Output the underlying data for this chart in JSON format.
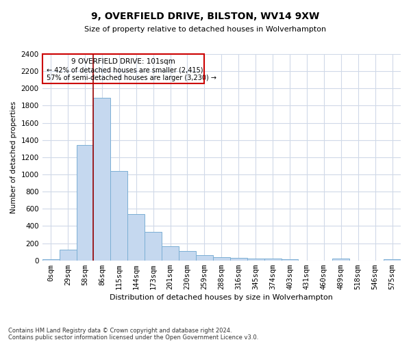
{
  "title": "9, OVERFIELD DRIVE, BILSTON, WV14 9XW",
  "subtitle": "Size of property relative to detached houses in Wolverhampton",
  "xlabel": "Distribution of detached houses by size in Wolverhampton",
  "ylabel": "Number of detached properties",
  "bar_color": "#c5d8ef",
  "bar_edge_color": "#7bafd4",
  "background_color": "#ffffff",
  "grid_color": "#d0d9e8",
  "annotation_box_color": "#cc0000",
  "vline_color": "#990000",
  "vline_x_index": 3,
  "annotation_title": "9 OVERFIELD DRIVE: 101sqm",
  "annotation_line1": "← 42% of detached houses are smaller (2,415)",
  "annotation_line2": "57% of semi-detached houses are larger (3,230) →",
  "categories": [
    "0sqm",
    "29sqm",
    "58sqm",
    "86sqm",
    "115sqm",
    "144sqm",
    "173sqm",
    "201sqm",
    "230sqm",
    "259sqm",
    "288sqm",
    "316sqm",
    "345sqm",
    "374sqm",
    "403sqm",
    "431sqm",
    "460sqm",
    "489sqm",
    "518sqm",
    "546sqm",
    "575sqm"
  ],
  "values": [
    15,
    125,
    1340,
    1890,
    1040,
    540,
    335,
    165,
    110,
    60,
    38,
    28,
    25,
    18,
    12,
    0,
    0,
    18,
    0,
    0,
    15
  ],
  "ylim": [
    0,
    2400
  ],
  "yticks": [
    0,
    200,
    400,
    600,
    800,
    1000,
    1200,
    1400,
    1600,
    1800,
    2000,
    2200,
    2400
  ],
  "footer_line1": "Contains HM Land Registry data © Crown copyright and database right 2024.",
  "footer_line2": "Contains public sector information licensed under the Open Government Licence v3.0."
}
